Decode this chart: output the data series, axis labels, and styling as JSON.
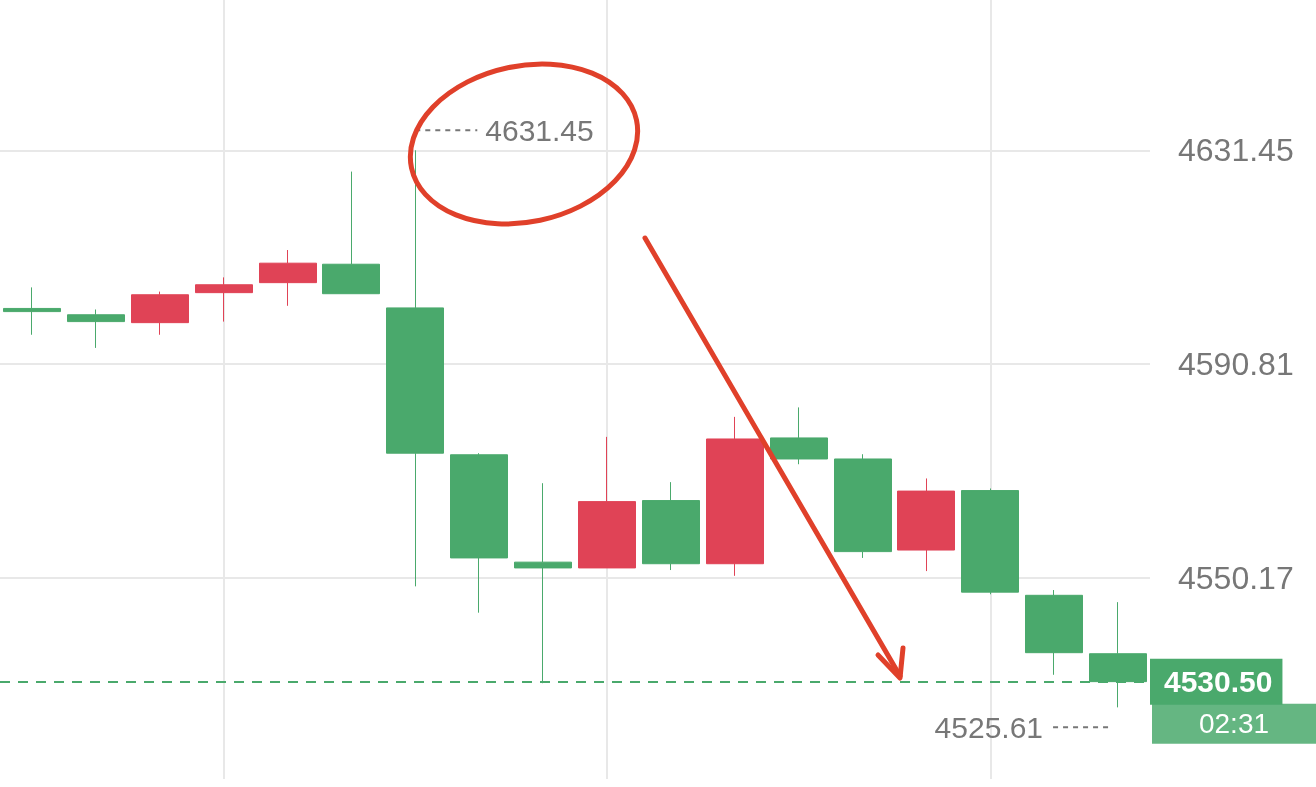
{
  "chart_data": {
    "type": "candlestick",
    "categories": [
      null,
      null,
      null,
      null,
      null,
      null,
      null,
      null,
      null,
      null,
      null,
      null,
      null,
      null,
      null,
      null,
      null,
      null
    ],
    "ohlc": [
      [
        4601.4,
        4605.4,
        4596.4,
        4600.8
      ],
      [
        4600.2,
        4601.2,
        4593.9,
        4598.9
      ],
      [
        4598.7,
        4604.6,
        4596.4,
        4604.0
      ],
      [
        4604.4,
        4607.3,
        4598.9,
        4605.9
      ],
      [
        4606.3,
        4612.5,
        4601.9,
        4610.0
      ],
      [
        4609.8,
        4627.4,
        4604.2,
        4604.2
      ],
      [
        4601.5,
        4631.45,
        4548.6,
        4573.9
      ],
      [
        4573.6,
        4573.9,
        4543.6,
        4554.0
      ],
      [
        4553.2,
        4568.2,
        4530.2,
        4552.1
      ],
      [
        4552.1,
        4577.0,
        4552.1,
        4564.7
      ],
      [
        4564.9,
        4568.4,
        4551.7,
        4552.9
      ],
      [
        4552.9,
        4580.8,
        4550.6,
        4576.6
      ],
      [
        4576.8,
        4582.6,
        4571.8,
        4572.8
      ],
      [
        4572.8,
        4573.7,
        4554.0,
        4555.2
      ],
      [
        4555.5,
        4569.1,
        4551.5,
        4566.7
      ],
      [
        4566.8,
        4567.2,
        4547.1,
        4547.5
      ],
      [
        4546.9,
        4547.9,
        4531.8,
        4536.0
      ],
      [
        4535.8,
        4545.6,
        4525.61,
        4530.5
      ]
    ],
    "colors": [
      "#4aa96c",
      "#4aa96c",
      "#e04356",
      "#e04356",
      "#e04356",
      "#4aa96c",
      "#4aa96c",
      "#4aa96c",
      "#4aa96c",
      "#e04356",
      "#4aa96c",
      "#e04356",
      "#4aa96c",
      "#4aa96c",
      "#e04356",
      "#4aa96c",
      "#4aa96c",
      "#4aa96c"
    ],
    "ylim": [
      4512,
      4660
    ],
    "yticks": [
      4631.45,
      4590.81,
      4550.17
    ],
    "grid": true,
    "ref_lines": [
      {
        "axis": "y",
        "value": 4530.5,
        "label": "4530.50",
        "color": "#4aa96c",
        "line_style": "dashed"
      }
    ],
    "annotations": [
      "4631.45",
      "4525.61",
      "02:31"
    ]
  }
}
